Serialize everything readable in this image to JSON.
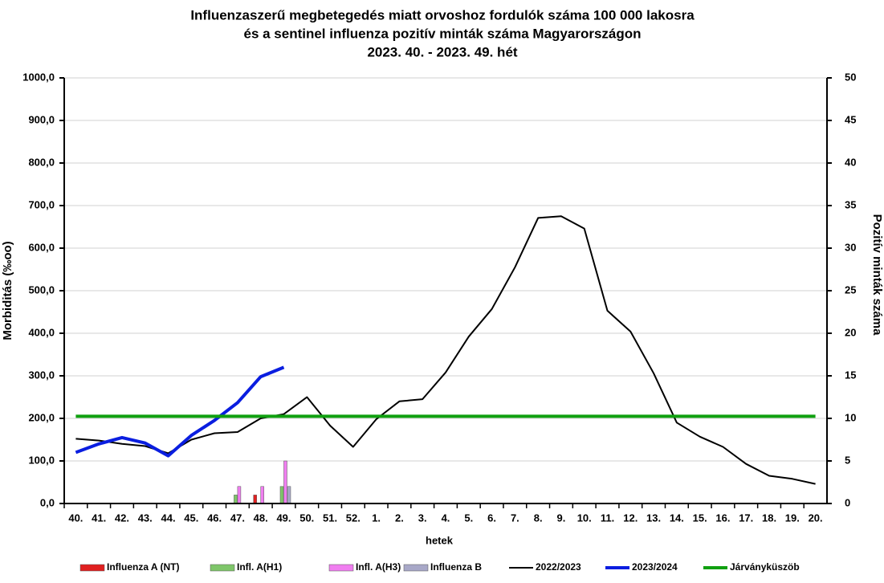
{
  "chart_data": {
    "type": "line",
    "title": [
      "Influenzaszerű megbetegedés miatt orvoshoz fordulók száma 100 000 lakosra",
      "és a sentinel influenza pozitív minták száma Magyarországon",
      "2023. 40. - 2023. 49. hét"
    ],
    "xlabel": "hetek",
    "ylabel": "Morbiditás (‰oo)",
    "y2label": "Pozitív minták száma",
    "categories": [
      "40.",
      "41.",
      "42.",
      "43.",
      "44.",
      "45.",
      "46.",
      "47.",
      "48.",
      "49.",
      "50.",
      "51.",
      "52.",
      "1.",
      "2.",
      "3.",
      "4.",
      "5.",
      "6.",
      "7.",
      "8.",
      "9.",
      "10.",
      "11.",
      "12.",
      "13.",
      "14.",
      "15.",
      "16.",
      "17.",
      "18.",
      "19.",
      "20."
    ],
    "ylim": [
      0,
      1000
    ],
    "yticks": [
      {
        "value": 0,
        "label": "0,0"
      },
      {
        "value": 100,
        "label": "100,0"
      },
      {
        "value": 200,
        "label": "200,0"
      },
      {
        "value": 300,
        "label": "300,0"
      },
      {
        "value": 400,
        "label": "400,0"
      },
      {
        "value": 500,
        "label": "500,0"
      },
      {
        "value": 600,
        "label": "600,0"
      },
      {
        "value": 700,
        "label": "700,0"
      },
      {
        "value": 800,
        "label": "800,0"
      },
      {
        "value": 900,
        "label": "900,0"
      },
      {
        "value": 1000,
        "label": "1000,0"
      }
    ],
    "y2lim": [
      0,
      50
    ],
    "y2ticks": [
      0,
      5,
      10,
      15,
      20,
      25,
      30,
      35,
      40,
      45,
      50
    ],
    "grid": true,
    "series": [
      {
        "name": "Influenza A (NT)",
        "type": "bar",
        "axis": "y2",
        "color": "#e02020",
        "values": [
          0,
          0,
          0,
          0,
          0,
          0,
          0,
          0,
          1,
          0,
          null,
          null,
          null,
          null,
          null,
          null,
          null,
          null,
          null,
          null,
          null,
          null,
          null,
          null,
          null,
          null,
          null,
          null,
          null,
          null,
          null,
          null,
          null
        ]
      },
      {
        "name": "Infl. A(H1)",
        "type": "bar",
        "axis": "y2",
        "color": "#7fc66a",
        "values": [
          0,
          0,
          0,
          0,
          0,
          0,
          0,
          1,
          0,
          2,
          null,
          null,
          null,
          null,
          null,
          null,
          null,
          null,
          null,
          null,
          null,
          null,
          null,
          null,
          null,
          null,
          null,
          null,
          null,
          null,
          null,
          null,
          null
        ]
      },
      {
        "name": "Infl. A(H3)",
        "type": "bar",
        "axis": "y2",
        "color": "#f07ef0",
        "values": [
          0,
          0,
          0,
          0,
          0,
          0,
          0,
          2,
          2,
          5,
          null,
          null,
          null,
          null,
          null,
          null,
          null,
          null,
          null,
          null,
          null,
          null,
          null,
          null,
          null,
          null,
          null,
          null,
          null,
          null,
          null,
          null,
          null
        ]
      },
      {
        "name": "Influenza B",
        "type": "bar",
        "axis": "y2",
        "color": "#a8a8c8",
        "values": [
          0,
          0,
          0,
          0,
          0,
          0,
          0,
          0,
          0,
          2,
          null,
          null,
          null,
          null,
          null,
          null,
          null,
          null,
          null,
          null,
          null,
          null,
          null,
          null,
          null,
          null,
          null,
          null,
          null,
          null,
          null,
          null,
          null
        ]
      },
      {
        "name": "2022/2023",
        "type": "line",
        "color": "#000000",
        "width": 2,
        "values": [
          152,
          148,
          140,
          135,
          118,
          150,
          165,
          168,
          200,
          210,
          250,
          183,
          133,
          198,
          240,
          245,
          308,
          392,
          457,
          555,
          671,
          675,
          646,
          453,
          404,
          306,
          190,
          157,
          133,
          93,
          65,
          58,
          46
        ]
      },
      {
        "name": "2023/2024",
        "type": "line",
        "color": "#0a1ee0",
        "width": 4,
        "values": [
          120,
          140,
          155,
          142,
          112,
          160,
          195,
          237,
          298,
          320,
          null,
          null,
          null,
          null,
          null,
          null,
          null,
          null,
          null,
          null,
          null,
          null,
          null,
          null,
          null,
          null,
          null,
          null,
          null,
          null,
          null,
          null,
          null
        ]
      },
      {
        "name": "Járványküszöb",
        "type": "line",
        "color": "#10a010",
        "width": 4,
        "values": [
          205,
          205,
          205,
          205,
          205,
          205,
          205,
          205,
          205,
          205,
          205,
          205,
          205,
          205,
          205,
          205,
          205,
          205,
          205,
          205,
          205,
          205,
          205,
          205,
          205,
          205,
          205,
          205,
          205,
          205,
          205,
          205,
          205
        ]
      }
    ]
  }
}
